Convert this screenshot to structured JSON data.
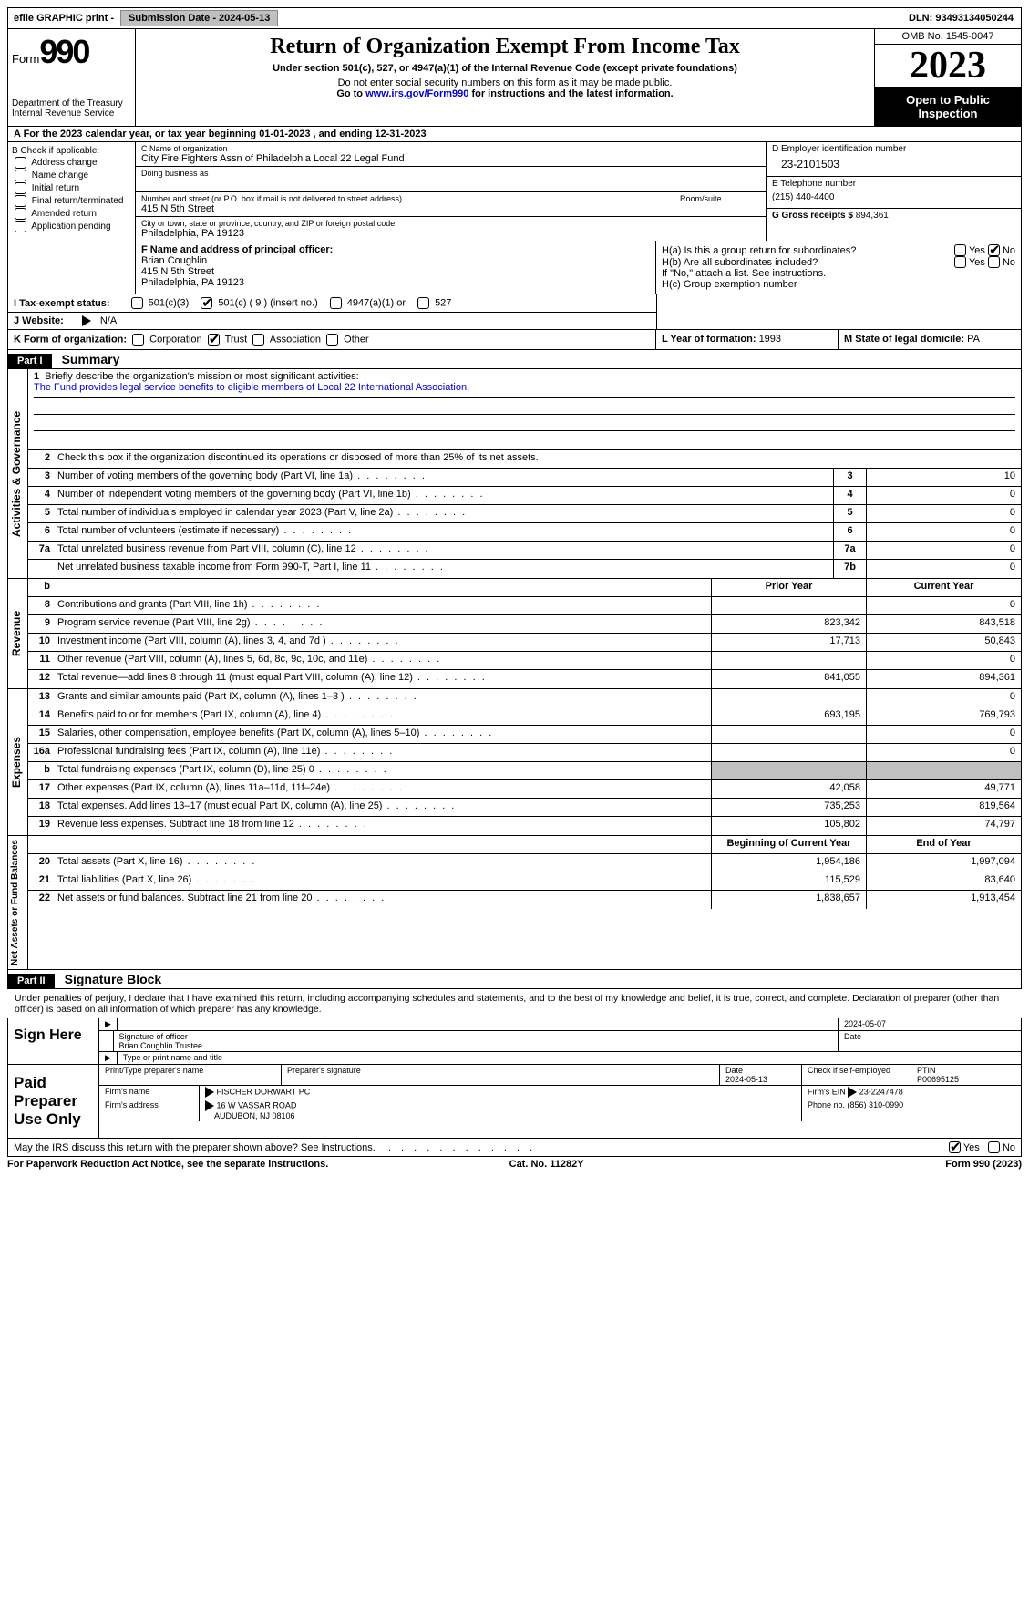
{
  "topbar": {
    "efile_label": "efile GRAPHIC print - ",
    "submission_label": "Submission Date - ",
    "submission_date": "2024-05-13",
    "dln_label": "DLN: ",
    "dln": "93493134050244"
  },
  "header": {
    "form_label": "Form",
    "form_number": "990",
    "dept": "Department of the Treasury Internal Revenue Service",
    "title": "Return of Organization Exempt From Income Tax",
    "subtitle": "Under section 501(c), 527, or 4947(a)(1) of the Internal Revenue Code (except private foundations)",
    "note1": "Do not enter social security numbers on this form as it may be made public.",
    "note2_pre": "Go to ",
    "note2_link": "www.irs.gov/Form990",
    "note2_post": " for instructions and the latest information.",
    "omb": "OMB No. 1545-0047",
    "year": "2023",
    "inspection": "Open to Public Inspection"
  },
  "row_a": "A For the 2023 calendar year, or tax year beginning 01-01-2023   , and ending 12-31-2023",
  "box_b": {
    "header": "B Check if applicable:",
    "opts": [
      "Address change",
      "Name change",
      "Initial return",
      "Final return/terminated",
      "Amended return",
      "Application pending"
    ]
  },
  "box_c": {
    "name_lbl": "C Name of organization",
    "name": "City Fire Fighters Assn of Philadelphia Local 22 Legal Fund",
    "dba_lbl": "Doing business as",
    "addr_lbl": "Number and street (or P.O. box if mail is not delivered to street address)",
    "addr": "415 N 5th Street",
    "room_lbl": "Room/suite",
    "city_lbl": "City or town, state or province, country, and ZIP or foreign postal code",
    "city": "Philadelphia, PA  19123"
  },
  "box_d": {
    "lbl": "D Employer identification number",
    "val": "23-2101503"
  },
  "box_e": {
    "lbl": "E Telephone number",
    "val": "(215) 440-4400"
  },
  "box_g": {
    "lbl": "G Gross receipts $ ",
    "val": "894,361"
  },
  "box_f": {
    "lbl": "F Name and address of principal officer:",
    "name": "Brian Coughlin",
    "addr1": "415 N 5th Street",
    "addr2": "Philadelphia, PA  19123"
  },
  "box_h": {
    "ha": "H(a)  Is this a group return for subordinates?",
    "hb": "H(b)  Are all subordinates included?",
    "hb_note": "If \"No,\" attach a list. See instructions.",
    "hc": "H(c)  Group exemption number",
    "yes": "Yes",
    "no": "No",
    "ha_checked": "no"
  },
  "row_i": {
    "lbl": "I  Tax-exempt status:",
    "opts": [
      "501(c)(3)",
      "501(c) ( 9 ) (insert no.)",
      "4947(a)(1) or",
      "527"
    ],
    "checked_index": 1
  },
  "row_j": {
    "lbl": "J  Website:",
    "val": "N/A",
    "triangle": true
  },
  "row_k": {
    "lbl": "K Form of organization:",
    "opts": [
      "Corporation",
      "Trust",
      "Association",
      "Other"
    ],
    "checked_index": 1,
    "l_lbl": "L Year of formation: ",
    "l_val": "1993",
    "m_lbl": "M State of legal domicile: ",
    "m_val": "PA"
  },
  "parts": {
    "p1": "Part I",
    "p1_title": "Summary",
    "p2": "Part II",
    "p2_title": "Signature Block"
  },
  "summary": {
    "side_labels": [
      "Activities & Governance",
      "Revenue",
      "Expenses",
      "Net Assets or Fund Balances"
    ],
    "line1_lbl": "Briefly describe the organization's mission or most significant activities:",
    "line1_val": "The Fund provides legal service benefits to eligible members of Local 22 International Association.",
    "line2": "Check this box      if the organization discontinued its operations or disposed of more than 25% of its net assets.",
    "gov_lines": [
      {
        "n": "3",
        "desc": "Number of voting members of the governing body (Part VI, line 1a)",
        "box": "3",
        "val": "10"
      },
      {
        "n": "4",
        "desc": "Number of independent voting members of the governing body (Part VI, line 1b)",
        "box": "4",
        "val": "0"
      },
      {
        "n": "5",
        "desc": "Total number of individuals employed in calendar year 2023 (Part V, line 2a)",
        "box": "5",
        "val": "0"
      },
      {
        "n": "6",
        "desc": "Total number of volunteers (estimate if necessary)",
        "box": "6",
        "val": "0"
      },
      {
        "n": "7a",
        "desc": "Total unrelated business revenue from Part VIII, column (C), line 12",
        "box": "7a",
        "val": "0"
      },
      {
        "n": "",
        "desc": "Net unrelated business taxable income from Form 990-T, Part I, line 11",
        "box": "7b",
        "val": "0"
      }
    ],
    "col_headers": {
      "prior": "Prior Year",
      "current": "Current Year",
      "begin": "Beginning of Current Year",
      "end": "End of Year"
    },
    "rev_lines": [
      {
        "n": "8",
        "desc": "Contributions and grants (Part VIII, line 1h)",
        "prior": "",
        "current": "0"
      },
      {
        "n": "9",
        "desc": "Program service revenue (Part VIII, line 2g)",
        "prior": "823,342",
        "current": "843,518"
      },
      {
        "n": "10",
        "desc": "Investment income (Part VIII, column (A), lines 3, 4, and 7d )",
        "prior": "17,713",
        "current": "50,843"
      },
      {
        "n": "11",
        "desc": "Other revenue (Part VIII, column (A), lines 5, 6d, 8c, 9c, 10c, and 11e)",
        "prior": "",
        "current": "0"
      },
      {
        "n": "12",
        "desc": "Total revenue—add lines 8 through 11 (must equal Part VIII, column (A), line 12)",
        "prior": "841,055",
        "current": "894,361"
      }
    ],
    "exp_lines": [
      {
        "n": "13",
        "desc": "Grants and similar amounts paid (Part IX, column (A), lines 1–3 )",
        "prior": "",
        "current": "0"
      },
      {
        "n": "14",
        "desc": "Benefits paid to or for members (Part IX, column (A), line 4)",
        "prior": "693,195",
        "current": "769,793"
      },
      {
        "n": "15",
        "desc": "Salaries, other compensation, employee benefits (Part IX, column (A), lines 5–10)",
        "prior": "",
        "current": "0"
      },
      {
        "n": "16a",
        "desc": "Professional fundraising fees (Part IX, column (A), line 11e)",
        "prior": "",
        "current": "0"
      },
      {
        "n": "b",
        "desc": "Total fundraising expenses (Part IX, column (D), line 25) 0",
        "prior": "shaded",
        "current": "shaded"
      },
      {
        "n": "17",
        "desc": "Other expenses (Part IX, column (A), lines 11a–11d, 11f–24e)",
        "prior": "42,058",
        "current": "49,771"
      },
      {
        "n": "18",
        "desc": "Total expenses. Add lines 13–17 (must equal Part IX, column (A), line 25)",
        "prior": "735,253",
        "current": "819,564"
      },
      {
        "n": "19",
        "desc": "Revenue less expenses. Subtract line 18 from line 12",
        "prior": "105,802",
        "current": "74,797"
      }
    ],
    "net_lines": [
      {
        "n": "20",
        "desc": "Total assets (Part X, line 16)",
        "prior": "1,954,186",
        "current": "1,997,094"
      },
      {
        "n": "21",
        "desc": "Total liabilities (Part X, line 26)",
        "prior": "115,529",
        "current": "83,640"
      },
      {
        "n": "22",
        "desc": "Net assets or fund balances. Subtract line 21 from line 20",
        "prior": "1,838,657",
        "current": "1,913,454"
      }
    ]
  },
  "sig": {
    "declaration": "Under penalties of perjury, I declare that I have examined this return, including accompanying schedules and statements, and to the best of my knowledge and belief, it is true, correct, and complete. Declaration of preparer (other than officer) is based on all information of which preparer has any knowledge.",
    "sign_here": "Sign Here",
    "sig_officer_lbl": "Signature of officer",
    "sig_date": "2024-05-07",
    "date_lbl": "Date",
    "officer_name": "Brian Coughlin Trustee",
    "type_lbl": "Type or print name and title",
    "paid": "Paid Preparer Use Only",
    "prep_name_lbl": "Print/Type preparer's name",
    "prep_sig_lbl": "Preparer's signature",
    "prep_date": "2024-05-13",
    "self_emp": "Check      if self-employed",
    "ptin_lbl": "PTIN",
    "ptin": "P00695125",
    "firm_name_lbl": "Firm's name",
    "firm_name": "FISCHER DORWART PC",
    "firm_ein_lbl": "Firm's EIN",
    "firm_ein": "23-2247478",
    "firm_addr_lbl": "Firm's address",
    "firm_addr1": "16 W VASSAR ROAD",
    "firm_addr2": "AUDUBON, NJ  08106",
    "phone_lbl": "Phone no. ",
    "phone": "(856) 310-0990",
    "discuss": "May the IRS discuss this return with the preparer shown above? See Instructions.",
    "discuss_yes": "Yes",
    "discuss_no": "No"
  },
  "footer": {
    "paperwork": "For Paperwork Reduction Act Notice, see the separate instructions.",
    "cat": "Cat. No. 11282Y",
    "form": "Form 990 (2023)"
  },
  "colors": {
    "link": "#0000cc",
    "black_bg": "#000000",
    "shaded": "#c0c0c0",
    "button_bg": "#c0c0c0"
  }
}
